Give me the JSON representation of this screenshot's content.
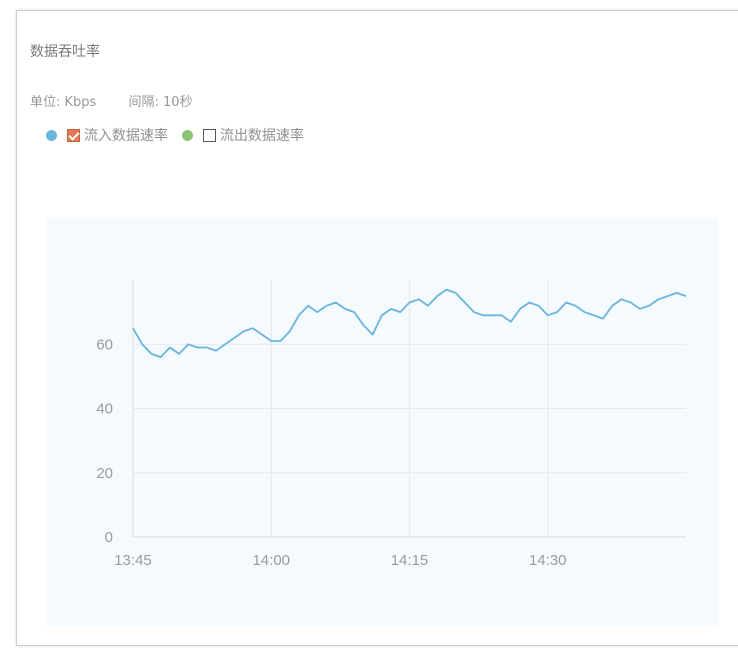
{
  "panel": {
    "title": "数据吞吐率",
    "unit_text": "单位: Kbps",
    "interval_text": "间隔: 10秒"
  },
  "legend": [
    {
      "label": "流入数据速率",
      "dot_color": "#6ab4de",
      "checked": true
    },
    {
      "label": "流出数据速率",
      "dot_color": "#8cc474",
      "checked": false
    }
  ],
  "chart_data": {
    "type": "line",
    "title": "数据吞吐率",
    "ylabel": "单位: Kbps",
    "x_ticks": [
      "13:45",
      "14:00",
      "14:15",
      "14:30"
    ],
    "y_ticks": [
      "0",
      "20",
      "40",
      "60"
    ],
    "ylim": [
      0,
      80
    ],
    "xlim": [
      "13:45",
      "14:45"
    ],
    "grid": true,
    "series": [
      {
        "name": "流入数据速率",
        "color": "#6ab4de",
        "x": [
          "13:45",
          "13:46",
          "13:47",
          "13:48",
          "13:49",
          "13:50",
          "13:51",
          "13:52",
          "13:53",
          "13:54",
          "13:55",
          "13:56",
          "13:57",
          "13:58",
          "13:59",
          "14:00",
          "14:01",
          "14:02",
          "14:03",
          "14:04",
          "14:05",
          "14:06",
          "14:07",
          "14:08",
          "14:09",
          "14:10",
          "14:11",
          "14:12",
          "14:13",
          "14:14",
          "14:15",
          "14:16",
          "14:17",
          "14:18",
          "14:19",
          "14:20",
          "14:21",
          "14:22",
          "14:23",
          "14:24",
          "14:25",
          "14:26",
          "14:27",
          "14:28",
          "14:29",
          "14:30",
          "14:31",
          "14:32",
          "14:33",
          "14:34",
          "14:35",
          "14:36",
          "14:37",
          "14:38",
          "14:39",
          "14:40",
          "14:41",
          "14:42",
          "14:43",
          "14:44",
          "14:45"
        ],
        "values": [
          65,
          60,
          57,
          56,
          59,
          57,
          60,
          59,
          59,
          58,
          60,
          62,
          64,
          65,
          63,
          61,
          61,
          64,
          69,
          72,
          70,
          72,
          73,
          71,
          70,
          66,
          63,
          69,
          71,
          70,
          73,
          74,
          72,
          75,
          77,
          76,
          73,
          70,
          69,
          69,
          69,
          67,
          71,
          73,
          72,
          69,
          70,
          73,
          72,
          70,
          69,
          68,
          72,
          74,
          73,
          71,
          72,
          74,
          75,
          76,
          75
        ]
      },
      {
        "name": "流出数据速率",
        "color": "#8cc474",
        "visible": false
      }
    ]
  }
}
